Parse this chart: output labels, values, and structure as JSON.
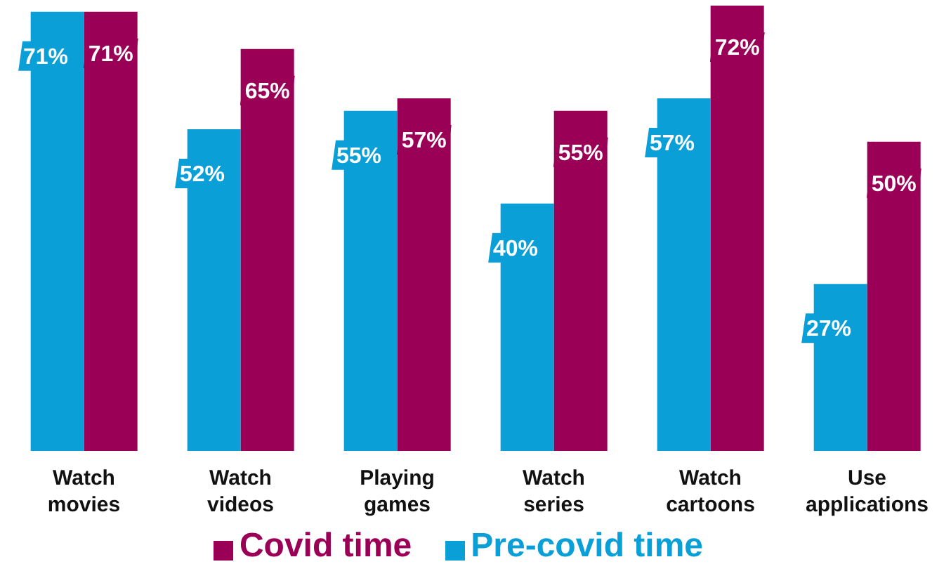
{
  "chart_data": {
    "type": "bar",
    "categories": [
      "Watch movies",
      "Watch videos",
      "Playing games",
      "Watch series",
      "Watch cartoons",
      "Use applications"
    ],
    "series": [
      {
        "name": "Pre-covid time",
        "color": "#0a9fd6",
        "values": [
          71,
          52,
          55,
          40,
          57,
          27
        ],
        "value_labels": [
          "71%",
          "52%",
          "55%",
          "40%",
          "57%",
          "27%"
        ]
      },
      {
        "name": "Covid time",
        "color": "#9b0057",
        "values": [
          71,
          65,
          57,
          55,
          72,
          50
        ],
        "value_labels": [
          "71%",
          "65%",
          "57%",
          "55%",
          "72%",
          "50%"
        ]
      }
    ],
    "legend": "bottom",
    "grid": false
  }
}
